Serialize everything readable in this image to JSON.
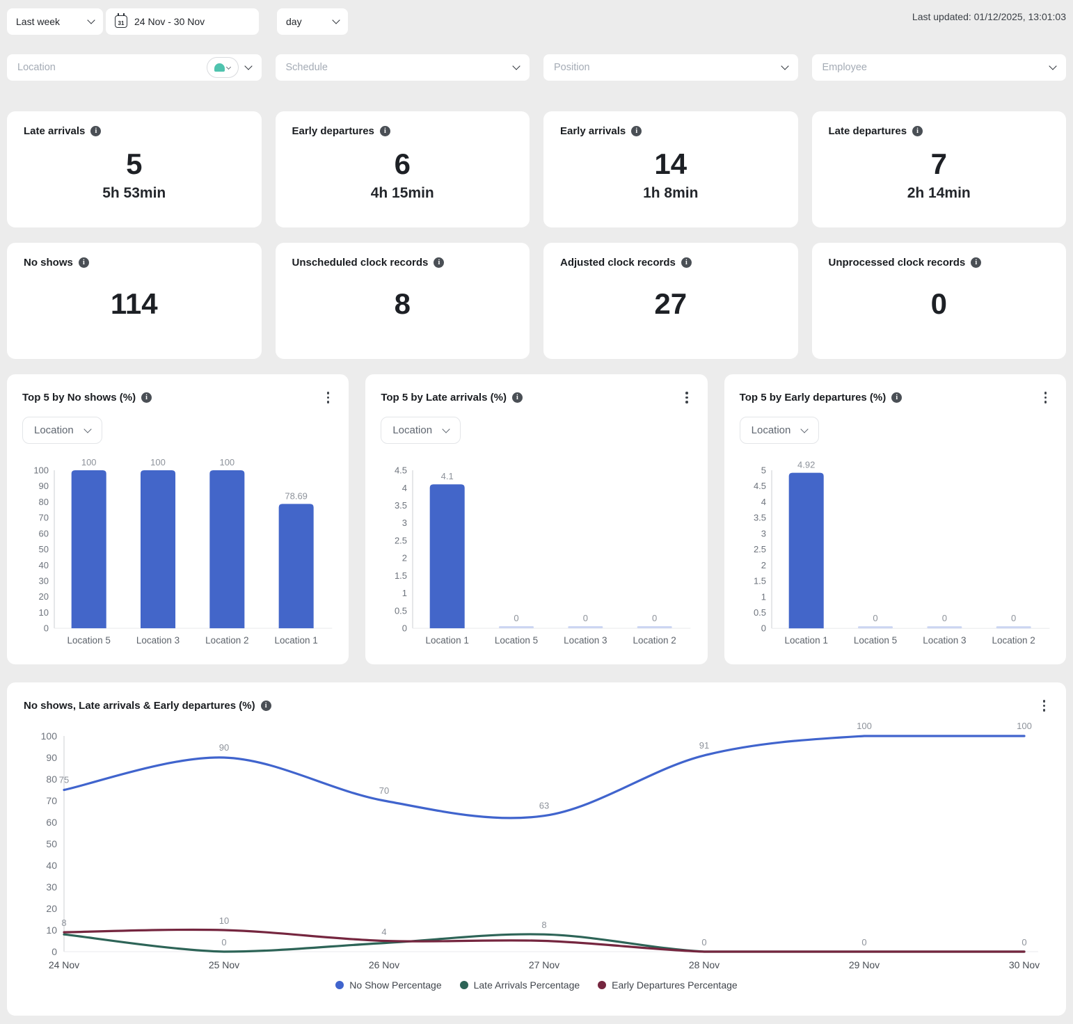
{
  "topbar": {
    "range_select": "Last week",
    "date_range": "24 Nov - 30 Nov",
    "granularity_select": "day",
    "last_updated": "Last updated: 01/12/2025, 13:01:03"
  },
  "icons": {
    "info": "i",
    "calendar": "31"
  },
  "filters": {
    "location_placeholder": "Location",
    "schedule_placeholder": "Schedule",
    "position_placeholder": "Position",
    "employee_placeholder": "Employee"
  },
  "kpis": [
    {
      "label": "Late arrivals",
      "value": "5",
      "sub": "5h 53min"
    },
    {
      "label": "Early departures",
      "value": "6",
      "sub": "4h 15min"
    },
    {
      "label": "Early arrivals",
      "value": "14",
      "sub": "1h 8min"
    },
    {
      "label": "Late departures",
      "value": "7",
      "sub": "2h 14min"
    },
    {
      "label": "No shows",
      "value": "114",
      "sub": ""
    },
    {
      "label": "Unscheduled clock records",
      "value": "8",
      "sub": ""
    },
    {
      "label": "Adjusted clock records",
      "value": "27",
      "sub": ""
    },
    {
      "label": "Unprocessed clock records",
      "value": "0",
      "sub": ""
    }
  ],
  "colors": {
    "page_bg": "#ececec",
    "card_bg": "#ffffff",
    "bar_blue": "#4366c9",
    "zero_bar": "#cbd5f2",
    "line_blue": "#4064cd",
    "line_green": "#2d6457",
    "line_maroon": "#75263f",
    "axis_gray": "#d8dadd",
    "tick_text": "#6d737c",
    "value_label_text": "#8d929a",
    "brand_teal": "#4fc3ae"
  },
  "chart_data": [
    {
      "type": "bar",
      "title": "Top 5 by No shows (%)",
      "group_by_label": "Location",
      "categories": [
        "Location 5",
        "Location 3",
        "Location 2",
        "Location 1"
      ],
      "values": [
        100,
        100,
        100,
        78.69
      ],
      "value_labels": [
        "100",
        "100",
        "100",
        "78.69"
      ],
      "yticks": [
        100,
        90,
        80,
        70,
        60,
        50,
        40,
        30,
        20,
        10,
        0
      ],
      "ylim": [
        0,
        100
      ],
      "grid": false,
      "legend_position": "none"
    },
    {
      "type": "bar",
      "title": "Top 5 by Late arrivals (%)",
      "group_by_label": "Location",
      "categories": [
        "Location 1",
        "Location 5",
        "Location 3",
        "Location 2"
      ],
      "values": [
        4.1,
        0,
        0,
        0
      ],
      "value_labels": [
        "4.1",
        "0",
        "0",
        "0"
      ],
      "yticks": [
        4.5,
        4,
        3.5,
        3,
        2.5,
        2,
        1.5,
        1,
        0.5,
        0
      ],
      "ylim": [
        0,
        4.5
      ],
      "grid": false,
      "legend_position": "none"
    },
    {
      "type": "bar",
      "title": "Top 5 by Early departures (%)",
      "group_by_label": "Location",
      "categories": [
        "Location 1",
        "Location 5",
        "Location 3",
        "Location 2"
      ],
      "values": [
        4.92,
        0,
        0,
        0
      ],
      "value_labels": [
        "4.92",
        "0",
        "0",
        "0"
      ],
      "yticks": [
        5,
        4.5,
        4,
        3.5,
        3,
        2.5,
        2,
        1.5,
        1,
        0.5,
        0
      ],
      "ylim": [
        0,
        5
      ],
      "grid": false,
      "legend_position": "none"
    },
    {
      "type": "line",
      "title": "No shows, Late arrivals & Early departures (%)",
      "x": [
        "24 Nov",
        "25 Nov",
        "26 Nov",
        "27 Nov",
        "28 Nov",
        "29 Nov",
        "30 Nov"
      ],
      "ylim": [
        0,
        100
      ],
      "yticks": [
        100,
        90,
        80,
        70,
        60,
        50,
        40,
        30,
        20,
        10,
        0
      ],
      "grid": false,
      "legend_position": "bottom",
      "series": [
        {
          "name": "No Show Percentage",
          "color": "#4064cd",
          "values": [
            75,
            90,
            70,
            63,
            91,
            100,
            100
          ],
          "labels": [
            "75",
            "90",
            "70",
            "63",
            "91",
            "100",
            "100"
          ]
        },
        {
          "name": "Late Arrivals Percentage",
          "color": "#2d6457",
          "values": [
            8,
            0,
            4,
            8,
            0,
            0,
            0
          ]
        },
        {
          "name": "Early Departures Percentage",
          "color": "#75263f",
          "values": [
            9,
            10,
            5,
            5,
            0,
            0,
            0
          ]
        }
      ],
      "annotations": [
        {
          "x": 0,
          "y": 9,
          "text": "8"
        },
        {
          "x": 1,
          "y": 10,
          "text": "10"
        },
        {
          "x": 1,
          "y": 0,
          "text": "0"
        },
        {
          "x": 2,
          "y": 4.8,
          "text": "4"
        },
        {
          "x": 3,
          "y": 8,
          "text": "8"
        },
        {
          "x": 4,
          "y": 0,
          "text": "0"
        },
        {
          "x": 5,
          "y": 0,
          "text": "0"
        },
        {
          "x": 6,
          "y": 0,
          "text": "0"
        }
      ]
    }
  ]
}
